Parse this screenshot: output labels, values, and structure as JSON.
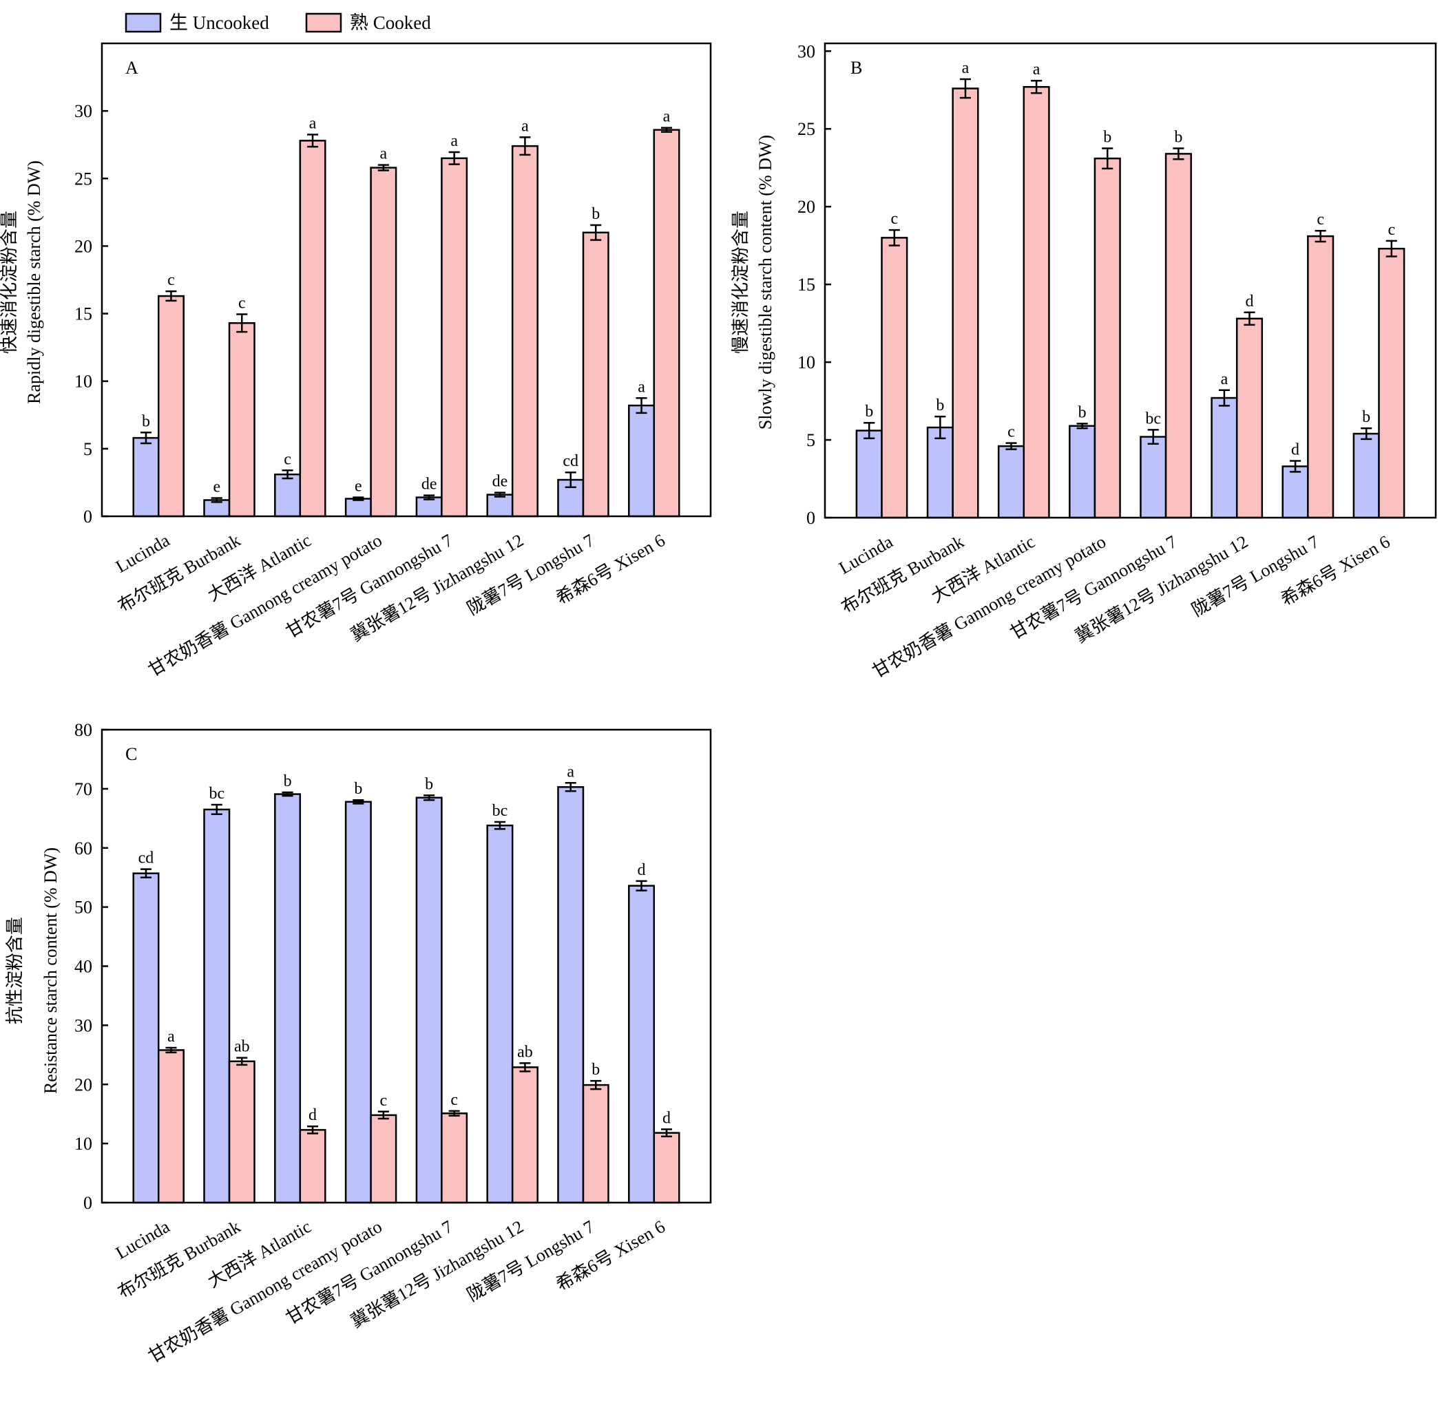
{
  "legend": {
    "uncooked_label": "生 Uncooked",
    "cooked_label": "熟 Cooked"
  },
  "colors": {
    "uncooked": "#bcc2fb",
    "cooked": "#fbc0c0",
    "outline": "#000000"
  },
  "chart_data": [
    {
      "type": "bar",
      "panel": "A",
      "ylabel_cn": "快速消化淀粉含量",
      "ylabel_en": "Rapidly digestible starch (% DW)",
      "ylim": [
        0,
        35
      ],
      "yticks": [
        0,
        5,
        10,
        15,
        20,
        25,
        30
      ],
      "categories": [
        "Lucinda",
        "布尔班克 Burbank",
        "大西洋 Atlantic",
        "甘农奶香薯 Gannong creamy potato",
        "甘农薯7号 Gannongshu 7",
        "冀张薯12号 Jizhangshu 12",
        "陇薯7号 Longshu 7",
        "希森6号 Xisen 6"
      ],
      "series": [
        {
          "name": "生 Uncooked",
          "values": [
            5.8,
            1.2,
            3.1,
            1.3,
            1.4,
            1.6,
            2.7,
            8.2
          ],
          "errors": [
            0.4,
            0.15,
            0.3,
            0.1,
            0.15,
            0.15,
            0.55,
            0.55
          ],
          "labels": [
            "b",
            "e",
            "c",
            "e",
            "de",
            "de",
            "cd",
            "a"
          ]
        },
        {
          "name": "熟 Cooked",
          "values": [
            16.3,
            14.3,
            27.8,
            25.8,
            26.5,
            27.4,
            21.0,
            28.6
          ],
          "errors": [
            0.35,
            0.65,
            0.45,
            0.2,
            0.45,
            0.65,
            0.55,
            0.15
          ],
          "labels": [
            "c",
            "c",
            "a",
            "a",
            "a",
            "a",
            "b",
            "a"
          ]
        }
      ]
    },
    {
      "type": "bar",
      "panel": "B",
      "ylabel_cn": "慢速消化淀粉含量",
      "ylabel_en": "Slowly digestible starch content (% DW)",
      "ylim": [
        0,
        30.5
      ],
      "yticks": [
        0,
        5,
        10,
        15,
        20,
        25,
        30
      ],
      "categories": [
        "Lucinda",
        "布尔班克 Burbank",
        "大西洋 Atlantic",
        "甘农奶香薯 Gannong creamy potato",
        "甘农薯7号 Gannongshu 7",
        "冀张薯12号 Jizhangshu 12",
        "陇薯7号 Longshu 7",
        "希森6号 Xisen 6"
      ],
      "series": [
        {
          "name": "生 Uncooked",
          "values": [
            5.6,
            5.8,
            4.6,
            5.9,
            5.2,
            7.7,
            3.3,
            5.4
          ],
          "errors": [
            0.5,
            0.7,
            0.2,
            0.15,
            0.45,
            0.5,
            0.35,
            0.35
          ],
          "labels": [
            "b",
            "b",
            "c",
            "b",
            "bc",
            "a",
            "d",
            "b"
          ]
        },
        {
          "name": "熟 Cooked",
          "values": [
            18.0,
            27.6,
            27.7,
            23.1,
            23.4,
            12.8,
            18.1,
            17.3
          ],
          "errors": [
            0.5,
            0.6,
            0.4,
            0.65,
            0.35,
            0.4,
            0.35,
            0.5
          ],
          "labels": [
            "c",
            "a",
            "a",
            "b",
            "b",
            "d",
            "c",
            "c"
          ]
        }
      ]
    },
    {
      "type": "bar",
      "panel": "C",
      "ylabel_cn": "抗性淀粉含量",
      "ylabel_en": "Resistance starch content (% DW)",
      "ylim": [
        0,
        80
      ],
      "yticks": [
        0,
        10,
        20,
        30,
        40,
        50,
        60,
        70,
        80
      ],
      "categories": [
        "Lucinda",
        "布尔班克 Burbank",
        "大西洋 Atlantic",
        "甘农奶香薯 Gannong creamy potato",
        "甘农薯7号 Gannongshu 7",
        "冀张薯12号 Jizhangshu 12",
        "陇薯7号 Longshu 7",
        "希森6号 Xisen 6"
      ],
      "series": [
        {
          "name": "生 Uncooked",
          "values": [
            55.7,
            66.5,
            69.1,
            67.8,
            68.5,
            63.8,
            70.3,
            53.6
          ],
          "errors": [
            0.7,
            0.8,
            0.3,
            0.3,
            0.4,
            0.6,
            0.7,
            0.8
          ],
          "labels": [
            "cd",
            "bc",
            "b",
            "b",
            "b",
            "bc",
            "a",
            "d"
          ]
        },
        {
          "name": "熟 Cooked",
          "values": [
            25.8,
            23.9,
            12.3,
            14.8,
            15.1,
            22.9,
            19.9,
            11.8
          ],
          "errors": [
            0.4,
            0.6,
            0.6,
            0.6,
            0.4,
            0.7,
            0.7,
            0.6
          ],
          "labels": [
            "a",
            "ab",
            "d",
            "c",
            "c",
            "ab",
            "b",
            "d"
          ]
        }
      ]
    }
  ]
}
